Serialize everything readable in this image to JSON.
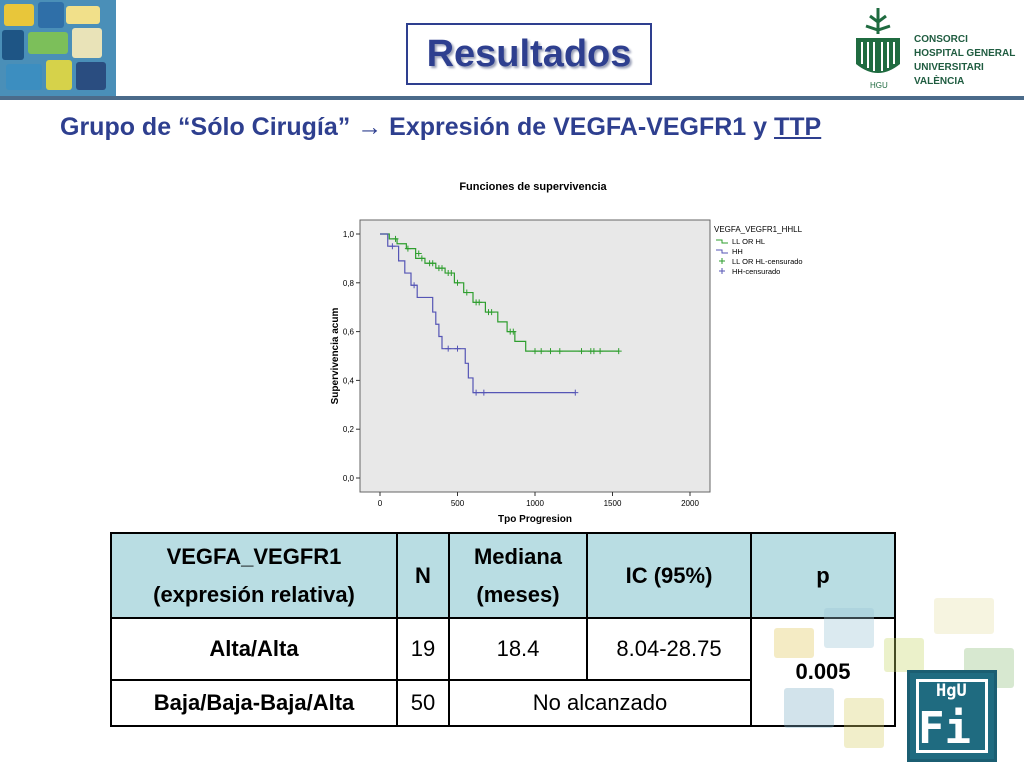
{
  "header": {
    "title": "Resultados",
    "institution_lines": [
      "CONSORCI",
      "HOSPITAL GENERAL",
      "UNIVERSITARI",
      "VALÈNCIA"
    ]
  },
  "subtitle": {
    "prefix": "Grupo de “Sólo Cirugía” ",
    "arrow": "→",
    "middle": " Expresión de VEGFA-VEGFR1 y ",
    "underlined": "TTP"
  },
  "chart_data": {
    "type": "line",
    "title": "Funciones de supervivencia",
    "xlabel": "Tpo Progresion",
    "ylabel": "Supervivencia acum",
    "xlim": [
      0,
      2000
    ],
    "ylim": [
      0,
      1.0
    ],
    "xticks": [
      "0",
      "500",
      "1000",
      "1500",
      "2000"
    ],
    "yticks": [
      "0,0",
      "0,2",
      "0,4",
      "0,6",
      "0,8",
      "1,0"
    ],
    "legend_title": "VEGFA_VEGFR1_HHLL",
    "legend_placement": "right",
    "legend_entries": [
      "LL OR HL",
      "HH",
      "LL OR HL-censurado",
      "HH-censurado"
    ],
    "series": [
      {
        "name": "LL OR HL",
        "color": "#2e9e2e",
        "steps": [
          [
            0,
            1.0
          ],
          [
            60,
            0.98
          ],
          [
            110,
            0.96
          ],
          [
            170,
            0.94
          ],
          [
            230,
            0.9
          ],
          [
            290,
            0.88
          ],
          [
            360,
            0.86
          ],
          [
            420,
            0.84
          ],
          [
            480,
            0.8
          ],
          [
            540,
            0.76
          ],
          [
            600,
            0.72
          ],
          [
            680,
            0.68
          ],
          [
            760,
            0.64
          ],
          [
            820,
            0.6
          ],
          [
            870,
            0.56
          ],
          [
            940,
            0.52
          ],
          [
            1540,
            0.52
          ]
        ],
        "censored": [
          [
            100,
            0.98
          ],
          [
            180,
            0.94
          ],
          [
            250,
            0.92
          ],
          [
            270,
            0.9
          ],
          [
            320,
            0.88
          ],
          [
            340,
            0.88
          ],
          [
            380,
            0.86
          ],
          [
            400,
            0.86
          ],
          [
            440,
            0.84
          ],
          [
            460,
            0.84
          ],
          [
            500,
            0.8
          ],
          [
            560,
            0.76
          ],
          [
            620,
            0.72
          ],
          [
            640,
            0.72
          ],
          [
            700,
            0.68
          ],
          [
            720,
            0.68
          ],
          [
            840,
            0.6
          ],
          [
            860,
            0.6
          ],
          [
            1000,
            0.52
          ],
          [
            1040,
            0.52
          ],
          [
            1100,
            0.52
          ],
          [
            1160,
            0.52
          ],
          [
            1300,
            0.52
          ],
          [
            1360,
            0.52
          ],
          [
            1380,
            0.52
          ],
          [
            1420,
            0.52
          ],
          [
            1540,
            0.52
          ]
        ]
      },
      {
        "name": "HH",
        "color": "#5555b5",
        "steps": [
          [
            0,
            1.0
          ],
          [
            50,
            0.95
          ],
          [
            120,
            0.89
          ],
          [
            160,
            0.84
          ],
          [
            200,
            0.79
          ],
          [
            240,
            0.74
          ],
          [
            340,
            0.68
          ],
          [
            360,
            0.63
          ],
          [
            380,
            0.58
          ],
          [
            400,
            0.53
          ],
          [
            550,
            0.47
          ],
          [
            570,
            0.41
          ],
          [
            600,
            0.35
          ],
          [
            1260,
            0.35
          ]
        ],
        "censored": [
          [
            80,
            0.95
          ],
          [
            220,
            0.79
          ],
          [
            440,
            0.53
          ],
          [
            500,
            0.53
          ],
          [
            620,
            0.35
          ],
          [
            670,
            0.35
          ],
          [
            1260,
            0.35
          ]
        ]
      }
    ]
  },
  "table": {
    "headers": [
      {
        "line1": "VEGFA_VEGFR1",
        "line2": "(expresión relativa)"
      },
      {
        "line1": "N",
        "line2": ""
      },
      {
        "line1": "Mediana",
        "line2": "(meses)"
      },
      {
        "line1": "IC (95%)",
        "line2": ""
      },
      {
        "line1": "p",
        "line2": ""
      }
    ],
    "rows": [
      {
        "group": "Alta/Alta",
        "n": "19",
        "mediana": "18.4",
        "ic": "8.04-28.75"
      },
      {
        "group": "Baja/Baja-Baja/Alta",
        "n": "50",
        "merged": "No alcanzado"
      }
    ],
    "p_value": "0.005"
  },
  "logo_bottom": {
    "top": "HgU",
    "big": "Fi"
  }
}
